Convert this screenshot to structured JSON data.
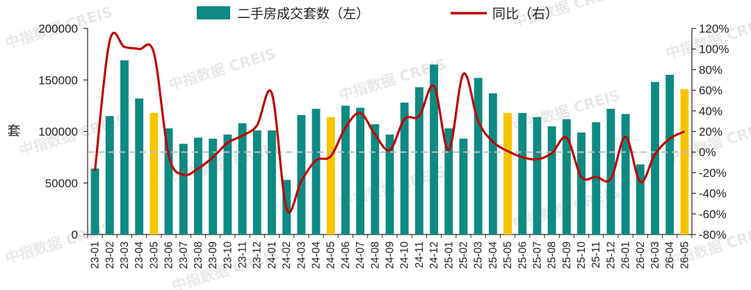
{
  "chart_data": {
    "type": "bar",
    "categories": [
      "23-01",
      "23-02",
      "23-03",
      "23-04",
      "23-05",
      "23-06",
      "23-07",
      "23-08",
      "23-09",
      "23-10",
      "23-11",
      "23-12",
      "24-01",
      "24-02",
      "24-03",
      "24-04",
      "24-05",
      "24-06",
      "24-07",
      "24-08",
      "24-09",
      "24-10",
      "24-11",
      "24-12",
      "25-01",
      "25-02",
      "25-03",
      "25-04",
      "25-05",
      "25-06",
      "25-07",
      "25-08",
      "25-09",
      "25-10",
      "25-11",
      "25-12",
      "26-01",
      "26-02",
      "26-03",
      "26-04",
      "26-05"
    ],
    "series": [
      {
        "name": "二手房成交套数（左）",
        "type": "bar",
        "axis": "left",
        "color": "#0e8a82",
        "highlight_color": "#f7c500",
        "highlight_categories": [
          "23-05",
          "24-05",
          "25-05",
          "26-05"
        ],
        "values": [
          64000,
          115000,
          169000,
          132000,
          118000,
          103000,
          88000,
          94000,
          93000,
          97000,
          108000,
          101000,
          101000,
          53000,
          116000,
          122000,
          114000,
          125000,
          123000,
          107000,
          97000,
          128000,
          143000,
          165000,
          103000,
          93000,
          152000,
          137000,
          118000,
          118000,
          114000,
          105000,
          112000,
          99000,
          109000,
          122000,
          117000,
          68000,
          148000,
          155000,
          141000
        ]
      },
      {
        "name": "同比（右）",
        "type": "line",
        "axis": "right",
        "color": "#c00000",
        "values": [
          -18,
          108,
          102,
          100,
          96,
          -3,
          -22,
          -16,
          -5,
          9,
          16,
          26,
          57,
          -55,
          -28,
          -8,
          -4,
          24,
          38,
          17,
          2,
          32,
          35,
          64,
          2,
          76,
          30,
          10,
          1,
          -5,
          -7,
          -1,
          14,
          -24,
          -24,
          -26,
          15,
          -29,
          -2,
          13,
          20
        ]
      }
    ],
    "ylabel": "套",
    "y_left_ticks": [
      "0",
      "50000",
      "100000",
      "150000",
      "200000"
    ],
    "y_left_range": [
      0,
      200000
    ],
    "y_right_ticks": [
      "-80%",
      "-60%",
      "-40%",
      "-20%",
      "0%",
      "20%",
      "40%",
      "60%",
      "80%",
      "100%",
      "120%"
    ],
    "y_right_range": [
      -80,
      120
    ],
    "zero_reference_line": "dashed grey at 0%",
    "grid": false,
    "legend_position": "top-center"
  },
  "watermark": {
    "text": "中指数据 CREIS"
  }
}
